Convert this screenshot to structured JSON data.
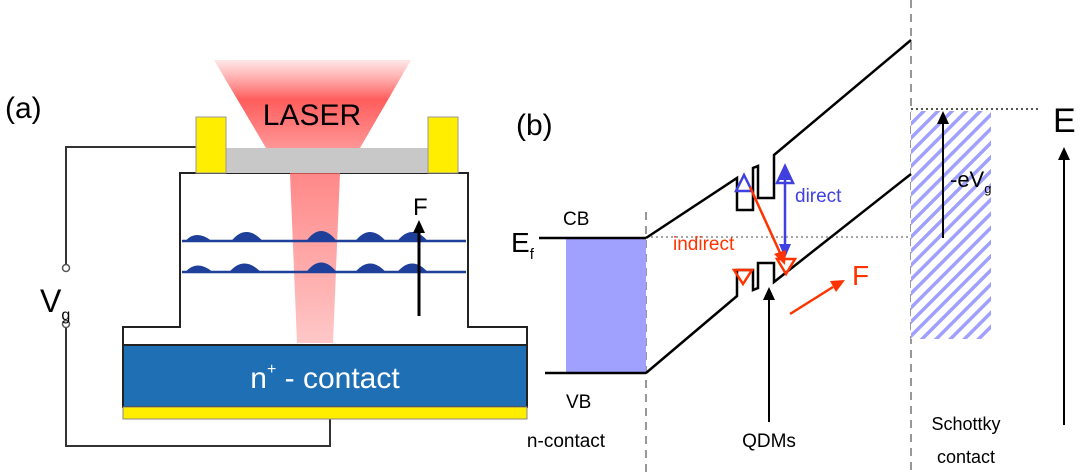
{
  "panel_a": {
    "label": "(a)",
    "laser_label": "LASER",
    "field_label": "F",
    "voltage_label": "V",
    "voltage_subscript": "g",
    "contact_superscript": "+",
    "contact_label": "n",
    "contact_suffix": " - contact"
  },
  "panel_b": {
    "label": "(b)",
    "cb_label": "CB",
    "vb_label": "VB",
    "fermi_label": "E",
    "fermi_subscript": "f",
    "direct_label": "direct",
    "indirect_label": "indirect",
    "field_label": "F",
    "voltage_label": "-eV",
    "voltage_subscript": "g",
    "energy_label": "E",
    "n_contact_label": "n-contact",
    "qdms_label": "QDMs",
    "schottky_line1": "Schottky",
    "schottky_line2": "contact"
  },
  "colors": {
    "contact_blue": "#1f6fb5",
    "gold": "#ffee00",
    "laser_red": "#ff3030",
    "wave_blue": "#1e3f9a",
    "fermi_blue": "#a0a0ff",
    "direct_blue": "#4040e0",
    "indirect_red": "#ff3300"
  }
}
